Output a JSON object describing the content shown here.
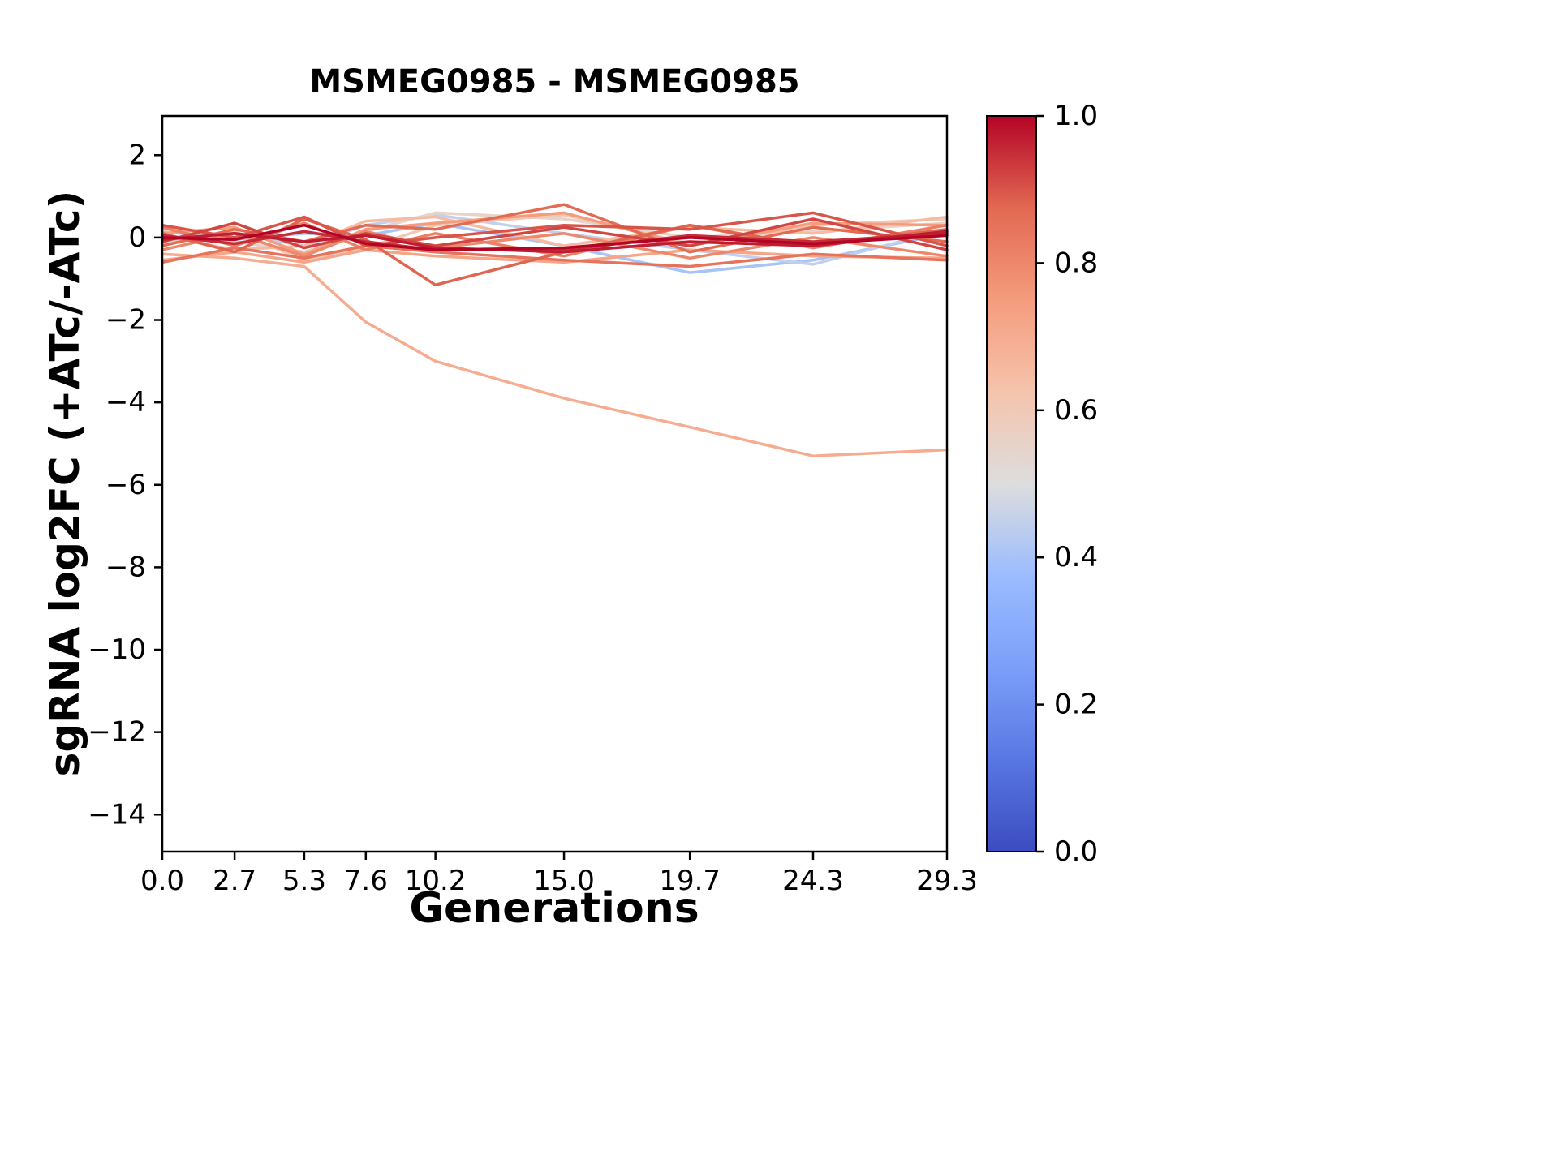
{
  "chart_data": {
    "type": "line",
    "title": "MSMEG0985 - MSMEG0985",
    "xlabel": "Generations",
    "ylabel": "sgRNA log2FC (+ATc/-ATc)",
    "xlim": [
      0.0,
      29.3
    ],
    "ylim": [
      -14.9,
      2.95
    ],
    "grid": false,
    "x": [
      0.0,
      2.7,
      5.3,
      7.6,
      10.2,
      15.0,
      19.7,
      24.3,
      29.3
    ],
    "xticks": [
      0.0,
      2.7,
      5.3,
      7.6,
      10.2,
      15.0,
      19.7,
      24.3,
      29.3
    ],
    "xtick_labels": [
      "0.0",
      "2.7",
      "5.3",
      "7.6",
      "10.2",
      "15.0",
      "19.7",
      "24.3",
      "29.3"
    ],
    "yticks": [
      2,
      0,
      -2,
      -4,
      -6,
      -8,
      -10,
      -12,
      -14
    ],
    "ytick_labels": [
      "2",
      "0",
      "−2",
      "−4",
      "−6",
      "−8",
      "−10",
      "−12",
      "−14"
    ],
    "series": [
      {
        "colormap_value": 0.4,
        "values": [
          0.15,
          -0.05,
          0.1,
          0.05,
          0.35,
          -0.2,
          -0.85,
          -0.55,
          0.1
        ]
      },
      {
        "colormap_value": 0.45,
        "values": [
          -0.15,
          0.1,
          -0.2,
          0.3,
          0.55,
          0.1,
          -0.3,
          -0.65,
          0.2
        ]
      },
      {
        "colormap_value": 0.55,
        "values": [
          0.2,
          -0.1,
          -0.35,
          0.15,
          0.6,
          0.45,
          0.0,
          0.15,
          0.35
        ]
      },
      {
        "colormap_value": 0.6,
        "values": [
          -0.1,
          0.15,
          -0.55,
          -0.25,
          0.3,
          0.55,
          -0.15,
          0.3,
          0.45
        ]
      },
      {
        "colormap_value": 0.65,
        "values": [
          0.05,
          -0.3,
          -0.2,
          0.4,
          0.5,
          -0.2,
          0.25,
          0.1,
          0.5
        ]
      },
      {
        "colormap_value": 0.7,
        "values": [
          -0.4,
          -0.5,
          -0.7,
          -2.05,
          -3.0,
          -3.9,
          -4.6,
          -5.3,
          -5.15
        ]
      },
      {
        "colormap_value": 0.72,
        "values": [
          -0.55,
          -0.35,
          -0.6,
          -0.3,
          -0.45,
          -0.6,
          -0.3,
          -0.45,
          -0.5
        ]
      },
      {
        "colormap_value": 0.75,
        "values": [
          0.1,
          0.25,
          -0.4,
          0.2,
          0.35,
          0.6,
          -0.2,
          0.35,
          0.3
        ]
      },
      {
        "colormap_value": 0.8,
        "values": [
          -0.3,
          0.1,
          -0.45,
          0.15,
          -0.25,
          0.1,
          -0.5,
          0.0,
          -0.45
        ]
      },
      {
        "colormap_value": 0.82,
        "values": [
          0.25,
          -0.2,
          0.35,
          -0.3,
          0.1,
          -0.45,
          0.3,
          -0.25,
          0.3
        ]
      },
      {
        "colormap_value": 0.85,
        "values": [
          -0.6,
          -0.25,
          -0.5,
          -0.2,
          -0.35,
          -0.55,
          -0.7,
          -0.4,
          -0.55
        ]
      },
      {
        "colormap_value": 0.87,
        "values": [
          -0.2,
          0.2,
          -0.1,
          0.3,
          0.2,
          0.8,
          -0.35,
          0.25,
          -0.1
        ]
      },
      {
        "colormap_value": 0.88,
        "values": [
          0.1,
          -0.35,
          0.45,
          -0.05,
          -1.15,
          -0.35,
          0.3,
          -0.2,
          0.2
        ]
      },
      {
        "colormap_value": 0.9,
        "values": [
          0.3,
          0.0,
          0.5,
          -0.2,
          0.0,
          0.3,
          0.2,
          0.6,
          -0.2
        ]
      },
      {
        "colormap_value": 0.92,
        "values": [
          -0.1,
          0.35,
          -0.25,
          0.1,
          -0.2,
          0.25,
          -0.2,
          0.45,
          -0.3
        ]
      },
      {
        "colormap_value": 0.95,
        "values": [
          0.05,
          -0.15,
          0.15,
          -0.1,
          -0.3,
          -0.3,
          0.05,
          -0.1,
          0.1
        ]
      },
      {
        "colormap_value": 0.97,
        "values": [
          -0.05,
          0.1,
          -0.1,
          0.05,
          -0.25,
          -0.35,
          -0.1,
          -0.2,
          0.15
        ]
      },
      {
        "colormap_value": 1.0,
        "values": [
          0.0,
          -0.05,
          0.3,
          -0.15,
          -0.3,
          -0.25,
          0.0,
          -0.15,
          0.05
        ]
      }
    ],
    "colorbar": {
      "colormap": "coolwarm",
      "ticks": [
        "1.0",
        "0.8",
        "0.6",
        "0.4",
        "0.2",
        "0.0"
      ],
      "tick_values": [
        1.0,
        0.8,
        0.6,
        0.4,
        0.2,
        0.0
      ],
      "anchors": [
        {
          "pos": 0.0,
          "color": "#3B4CC0"
        },
        {
          "pos": 0.125,
          "color": "#5977E3"
        },
        {
          "pos": 0.25,
          "color": "#7B9FF9"
        },
        {
          "pos": 0.375,
          "color": "#9BBCFF"
        },
        {
          "pos": 0.5,
          "color": "#DDDDDD"
        },
        {
          "pos": 0.625,
          "color": "#F5C4AC"
        },
        {
          "pos": 0.75,
          "color": "#F59C7D"
        },
        {
          "pos": 0.875,
          "color": "#E26952"
        },
        {
          "pos": 1.0,
          "color": "#B40426"
        }
      ]
    }
  }
}
